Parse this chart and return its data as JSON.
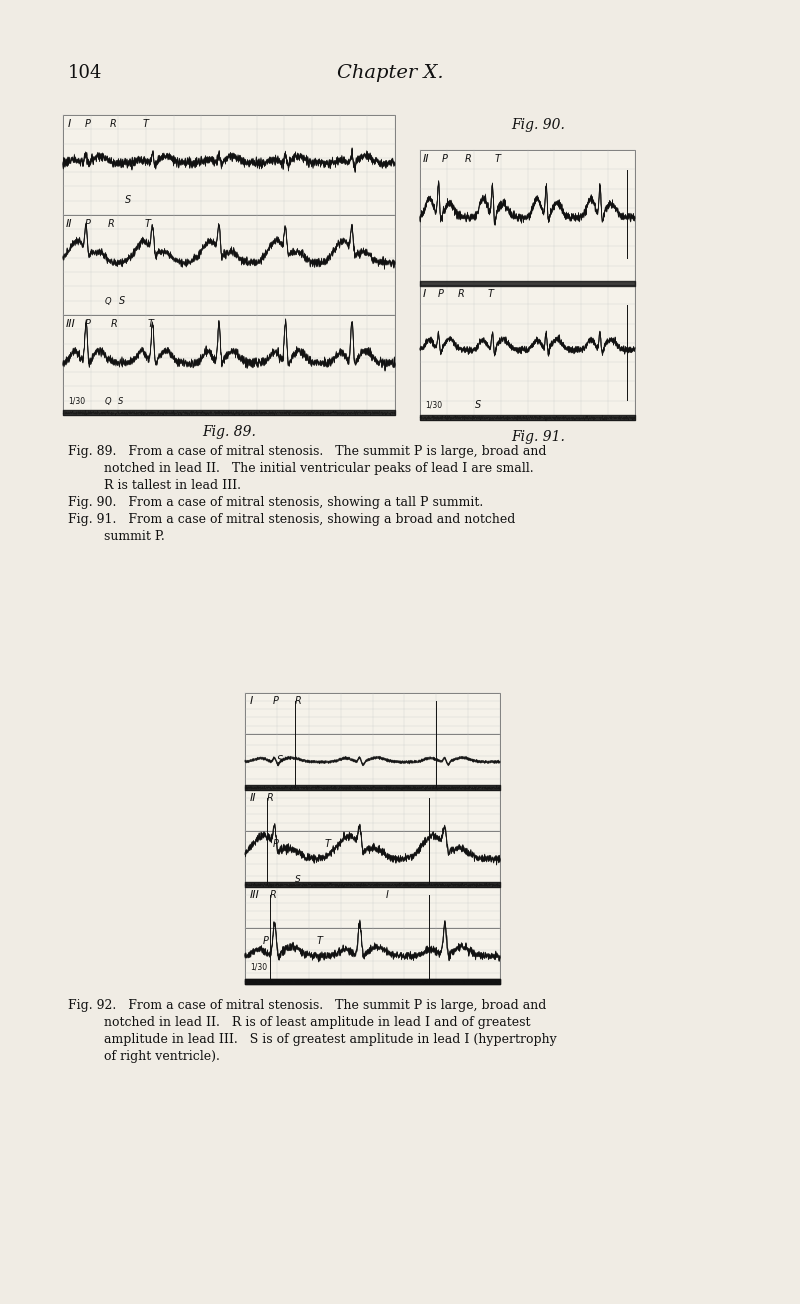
{
  "page_number": "104",
  "chapter_title": "Chapter X.",
  "background_color": "#f0ece4",
  "text_color": "#111111",
  "fig_label_89": "Fig. 89.",
  "fig_label_90": "Fig. 90.",
  "fig_label_91": "Fig. 91.",
  "fig_label_92": "Fig. 92.",
  "ecg_line_color": "#111111",
  "grid_line_color": "#bbbbbb",
  "chart_bg": "#f5f2ea",
  "chart_border": "#666666",
  "time_bar_color": "#111111"
}
